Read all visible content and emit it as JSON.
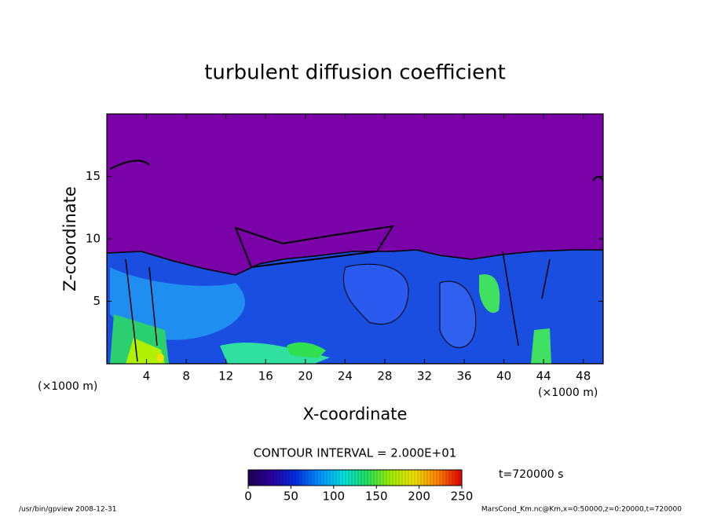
{
  "chart_data": {
    "type": "contour",
    "title": "turbulent diffusion coefficient",
    "x_label": "X-coordinate",
    "y_label": "Z-coordinate",
    "x_unit": "(×1000 m)",
    "y_unit": "(×1000 m)",
    "xlim": [
      0,
      50
    ],
    "xticks": [
      4,
      8,
      12,
      16,
      20,
      24,
      28,
      32,
      36,
      40,
      44,
      48
    ],
    "ylim": [
      0,
      20
    ],
    "yticks": [
      5,
      10,
      15
    ],
    "contour_interval": "CONTOUR INTERVAL = 2.000E+01",
    "time_label": "t=720000 s",
    "colorbar": {
      "lim": [
        0,
        250
      ],
      "ticks": [
        0,
        50,
        100,
        150,
        200,
        250
      ],
      "colors": [
        "#200050",
        "#2a00a0",
        "#0030e0",
        "#0090ff",
        "#00e0e0",
        "#20e060",
        "#a0f000",
        "#f0e000",
        "#ff8000",
        "#e00000"
      ]
    },
    "footer_left": "/usr/bin/gpview  2008-12-31",
    "footer_right": "MarsCond_Km.nc@Km,x=0:50000,z=0:20000,t=720000"
  }
}
